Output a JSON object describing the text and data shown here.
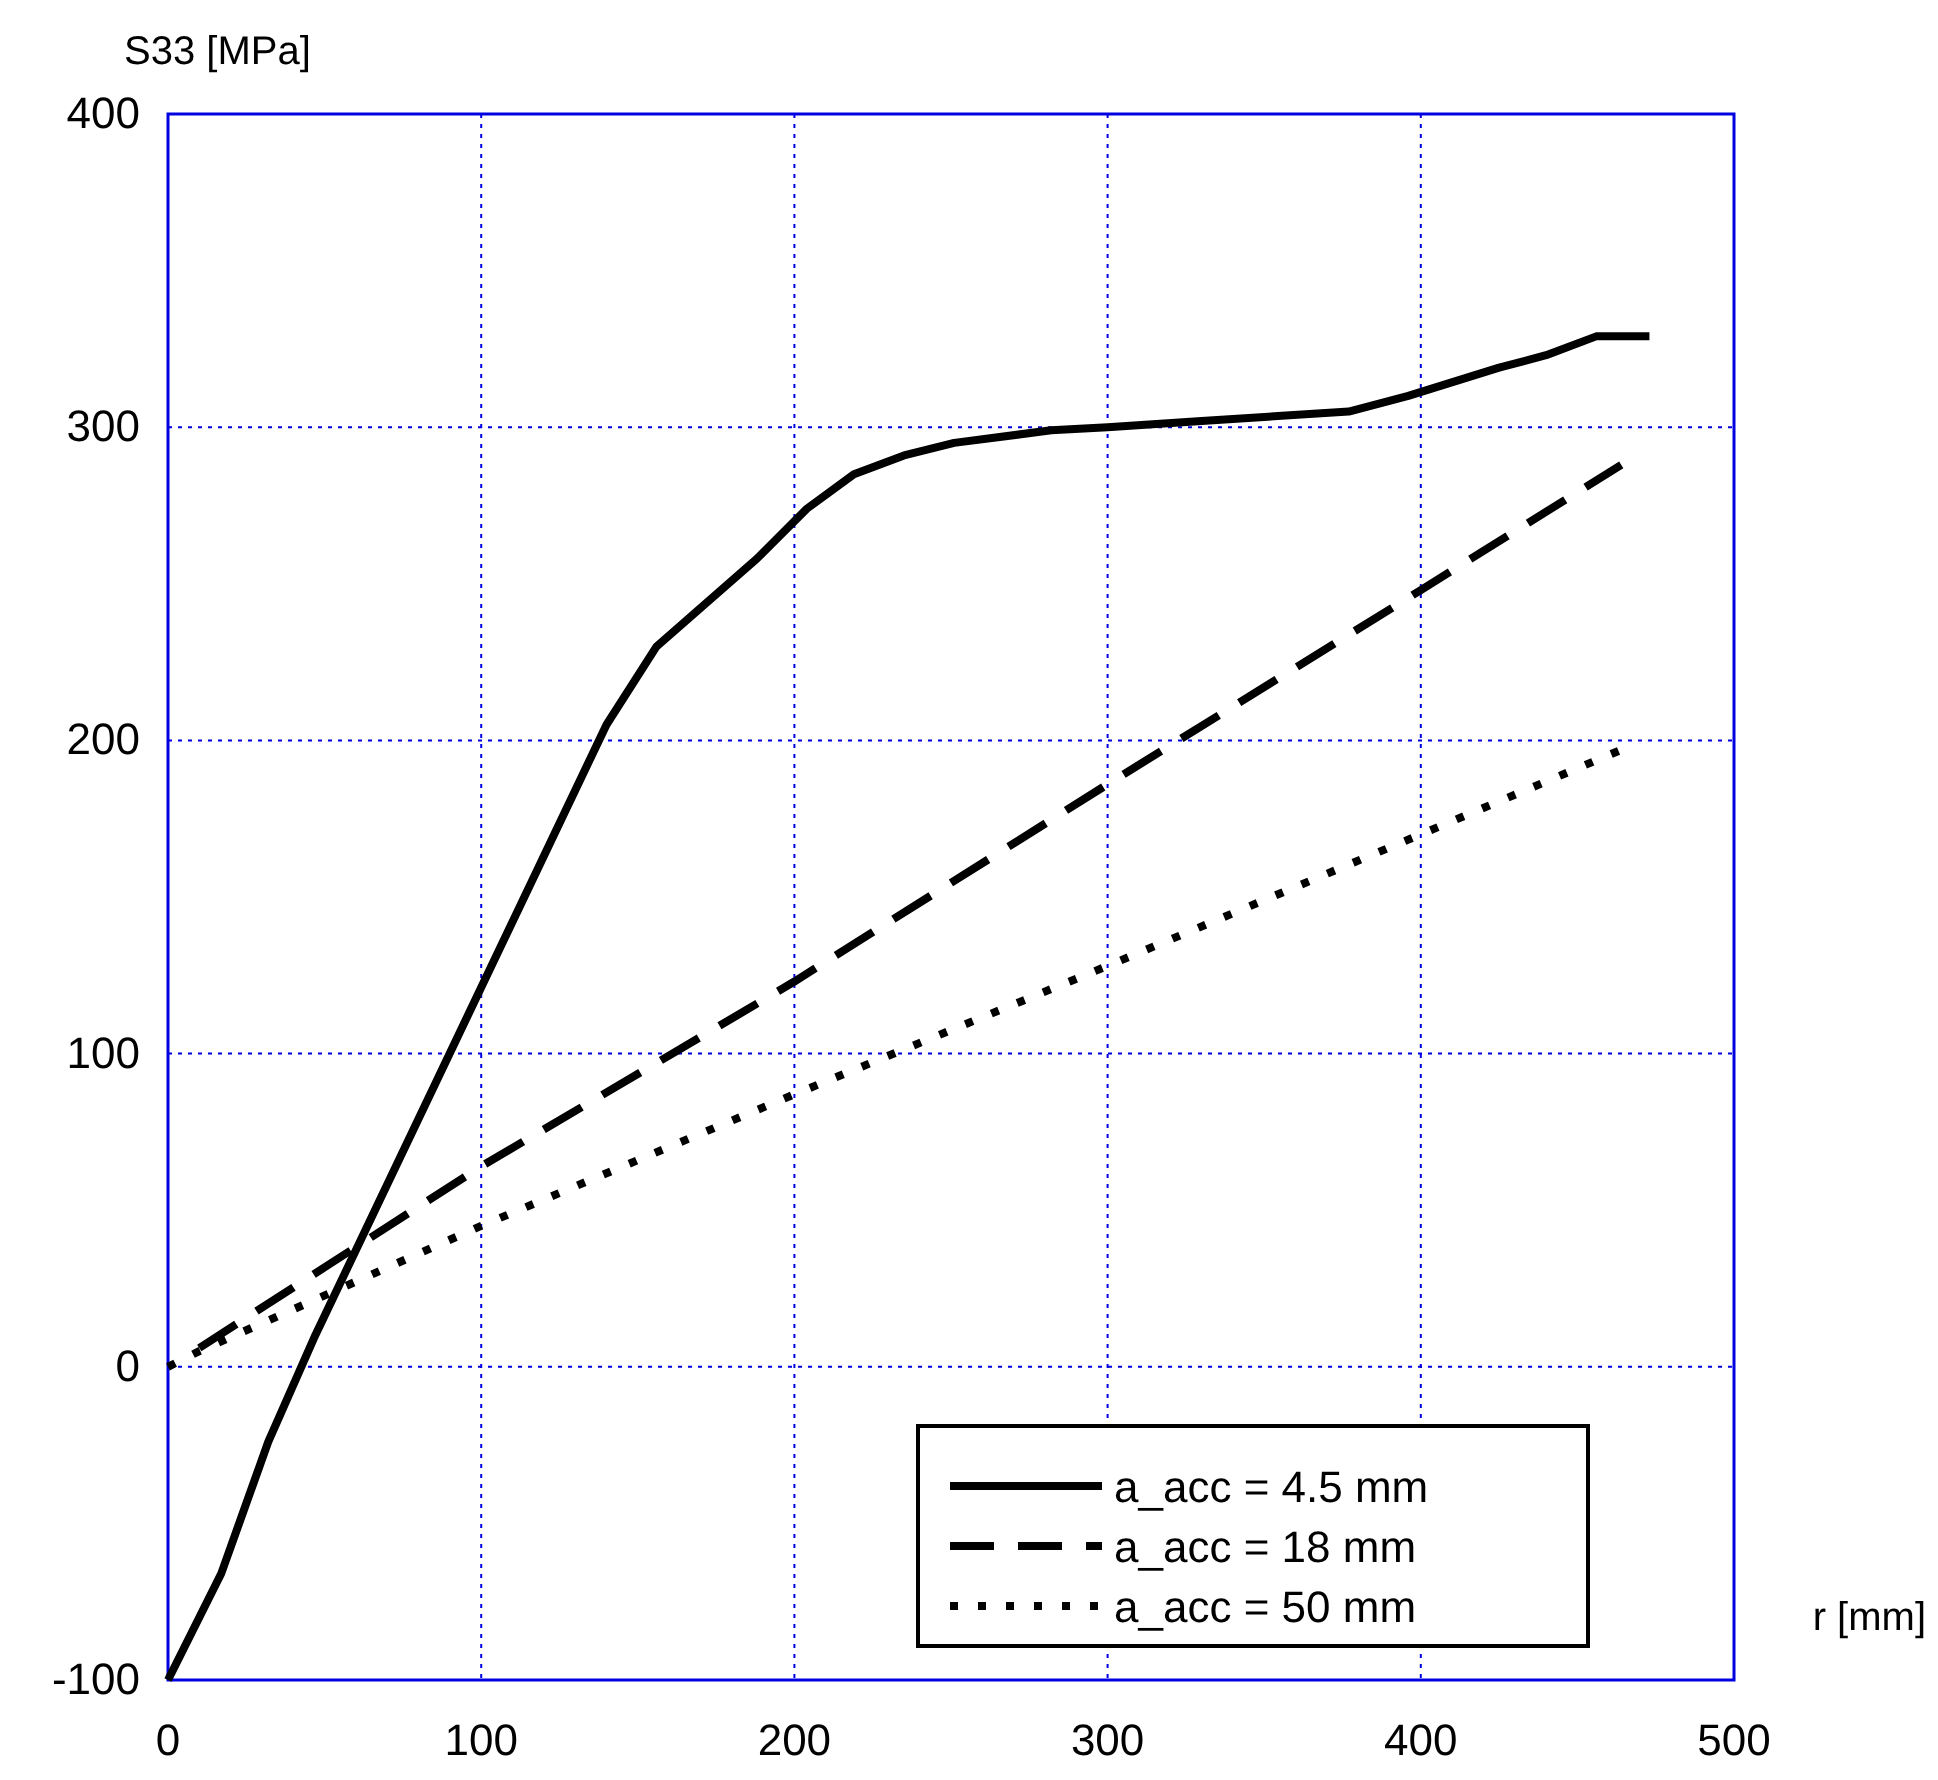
{
  "chart_data": {
    "type": "line",
    "xlabel": "r [mm]",
    "ylabel": "S33 [MPa]",
    "xlim": [
      0,
      500
    ],
    "xticks": [
      0,
      100,
      200,
      300,
      400,
      500
    ],
    "ylim": [
      -100,
      400
    ],
    "yticks": [
      -100,
      0,
      100,
      200,
      300,
      400
    ],
    "grid": true,
    "legend": "bottom right",
    "marker": "none",
    "series": [
      {
        "name": "a_acc = 4.5 mm",
        "color": "#000000",
        "line_style": "solid",
        "x": [
          0,
          17,
          32,
          47,
          140,
          156,
          188,
          204,
          219,
          235,
          251,
          282,
          300,
          330,
          377,
          396,
          425,
          440,
          456,
          473
        ],
        "values": [
          -100,
          -66,
          -24,
          10,
          205,
          230,
          258,
          274,
          285,
          291,
          295,
          299,
          300,
          302,
          305,
          310,
          319,
          323,
          329,
          329
        ]
      },
      {
        "name": "a_acc = 18 mm",
        "color": "#000000",
        "line_style": "dashed",
        "x": [
          10,
          100,
          200,
          300,
          400,
          464
        ],
        "values": [
          6,
          64,
          123,
          186,
          248,
          288
        ]
      },
      {
        "name": "a_acc = 50 mm",
        "color": "#000000",
        "line_style": "dotted",
        "x": [
          0,
          10,
          100,
          200,
          300,
          400,
          464
        ],
        "values": [
          0,
          5,
          45,
          87,
          128,
          170,
          197
        ]
      }
    ]
  }
}
